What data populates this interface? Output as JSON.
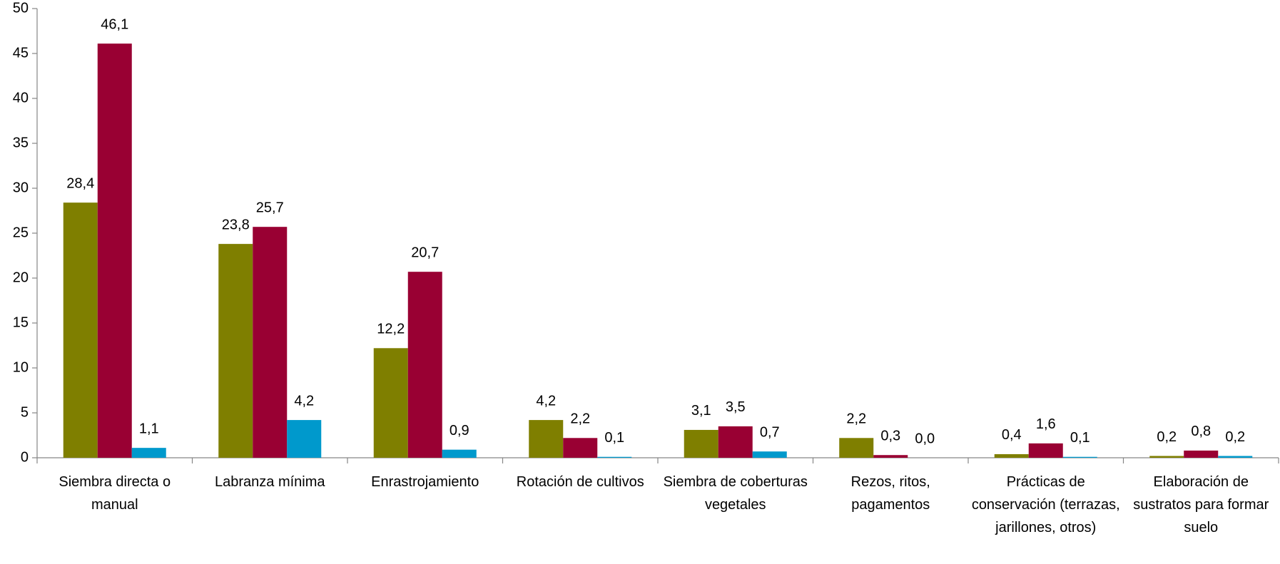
{
  "chart_data": {
    "type": "bar",
    "categories": [
      "Siembra directa o manual",
      "Labranza mínima",
      "Enrastrojamiento",
      "Rotación de cultivos",
      "Siembra de coberturas vegetales",
      "Rezos, ritos, pagamentos",
      "Prácticas de conservación (terrazas, jarillones, otros)",
      "Elaboración de sustratos para formar suelo"
    ],
    "series": [
      {
        "color": "#7f7f00",
        "values": [
          28.4,
          23.8,
          12.2,
          4.2,
          3.1,
          2.2,
          0.4,
          0.2
        ],
        "value_labels": [
          "28,4",
          "23,8",
          "12,2",
          "4,2",
          "3,1",
          "2,2",
          "0,4",
          "0,2"
        ]
      },
      {
        "color": "#990033",
        "values": [
          46.1,
          25.7,
          20.7,
          2.2,
          3.5,
          0.3,
          1.6,
          0.8
        ],
        "value_labels": [
          "46,1",
          "25,7",
          "20,7",
          "2,2",
          "3,5",
          "0,3",
          "1,6",
          "0,8"
        ]
      },
      {
        "color": "#0099cc",
        "values": [
          1.1,
          4.2,
          0.9,
          0.1,
          0.7,
          0.0,
          0.1,
          0.2
        ],
        "value_labels": [
          "1,1",
          "4,2",
          "0,9",
          "0,1",
          "0,7",
          "0,0",
          "0,1",
          "0,2"
        ]
      }
    ],
    "ylim": [
      0,
      50
    ],
    "yticks": [
      0,
      5,
      10,
      15,
      20,
      25,
      30,
      35,
      40,
      45,
      50
    ]
  }
}
